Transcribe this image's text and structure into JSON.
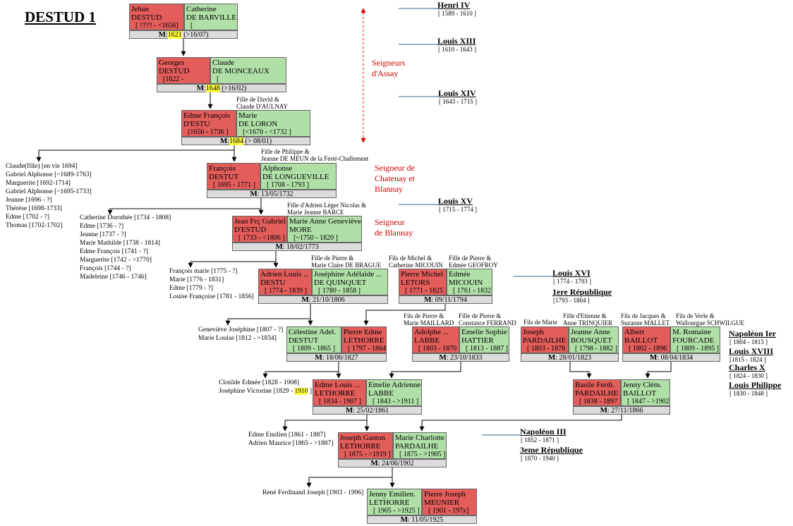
{
  "title": "DESTUD 1",
  "couples": [
    {
      "left": {
        "color": "#e35d5b",
        "lines": [
          "Jehan",
          "DESTUD"
        ],
        "dates": "[ ???? - <1656]"
      },
      "right": {
        "color": "#b0e0a8",
        "lines": [
          "Catherine",
          "DE BARVILLE"
        ],
        "dates": "["
      },
      "marriage": {
        "label": "M",
        "text": ":",
        "year": "1621",
        "after": "(>16/07)"
      }
    },
    {
      "left": {
        "color": "#e35d5b",
        "lines": [
          "Georges",
          "DESTUD"
        ],
        "dates": "[1622 -"
      },
      "right": {
        "color": "#b0e0a8",
        "lines": [
          "Claude",
          "DE MONCEAUX"
        ],
        "dates": "["
      },
      "marriage": {
        "label": "M",
        "text": ":",
        "year": "1648",
        "after": "(>16/02)"
      }
    },
    {
      "left": {
        "color": "#e35d5b",
        "lines": [
          "Edme François",
          "D'ESTU"
        ],
        "dates": "[1656 - 1736 ]"
      },
      "right": {
        "color": "#b0e0a8",
        "lines": [
          "Marie",
          "DE LORON"
        ],
        "dates": "[<1670 - <1732 ]"
      },
      "marriage": {
        "label": "M",
        "text": ":",
        "year": "1684",
        "after": "(> 08/01)"
      }
    },
    {
      "left": {
        "color": "#e35d5b",
        "lines": [
          "François",
          "DESTUT"
        ],
        "dates": "[ 1695 - 1771 ]"
      },
      "right": {
        "color": "#b0e0a8",
        "lines": [
          "Alphonse",
          "DE LONGUEVILLE"
        ],
        "dates": "[ 1708 - 1793 ]"
      },
      "marriage": {
        "label": "M",
        "text": ": 13/05/1732"
      }
    },
    {
      "left": {
        "color": "#e35d5b",
        "lines": [
          "Jean Frç Gabriel",
          "D'ESTUD"
        ],
        "dates": "[ 1733 - <1806 ]"
      },
      "right": {
        "color": "#b0e0a8",
        "lines": [
          "Marie Anne Geneviève",
          "MORE"
        ],
        "dates": "[~1750 - 1820 ]"
      },
      "marriage": {
        "label": "M",
        "text": ": 18/02/1773"
      }
    },
    {
      "left": {
        "color": "#e35d5b",
        "lines": [
          "Adrien Louis ...",
          "DESTU"
        ],
        "dates": "[ 1774 - 1839 ]"
      },
      "right": {
        "color": "#b0e0a8",
        "lines": [
          "Joséphine Adélaide ...",
          "DE QUINQUET"
        ],
        "dates": "[ 1780 - 1858 ]"
      },
      "marriage": {
        "label": "M",
        "text": ": 21/10/1806"
      }
    },
    {
      "left": {
        "color": "#e35d5b",
        "lines": [
          "Pierre Michel",
          "LETORS"
        ],
        "dates": "[ 1771 - 1825 ]"
      },
      "right": {
        "color": "#b0e0a8",
        "lines": [
          "Edmée",
          "MICOUIN"
        ],
        "dates": "[ 1761 - 1832 ]"
      },
      "marriage": {
        "label": "M",
        "text": ": 09/11/1794"
      }
    },
    {
      "left": {
        "color": "#b0e0a8",
        "lines": [
          "Célestine Adel.",
          "DESTUT"
        ],
        "dates": "[ 1809 - 1865 ]"
      },
      "right": {
        "color": "#e35d5b",
        "lines": [
          "Pierre Edme",
          "LETHORRE"
        ],
        "dates": "[ 1797 - 1864 ]"
      },
      "marriage": {
        "label": "M",
        "text": ": 18/06/1827"
      }
    },
    {
      "left": {
        "color": "#e35d5b",
        "lines": [
          "Adolphe ...",
          "LABBE"
        ],
        "dates": "[ 1803 - 1870 ]"
      },
      "right": {
        "color": "#b0e0a8",
        "lines": [
          "Emelie Sophie",
          "HATTIER"
        ],
        "dates": "[ 1813 - 1887 ]"
      },
      "marriage": {
        "label": "M",
        "text": ": 23/10/1833"
      }
    },
    {
      "left": {
        "color": "#e35d5b",
        "lines": [
          "Joseph",
          "PARDAILHE"
        ],
        "dates": "[ 1803 - 1878 ]"
      },
      "right": {
        "color": "#b0e0a8",
        "lines": [
          "Jeanne Anne",
          "BOUSQUET"
        ],
        "dates": "[ 1798 - 1882 ]"
      },
      "marriage": {
        "label": "M",
        "text": ": 28/01/1823"
      }
    },
    {
      "left": {
        "color": "#e35d5b",
        "lines": [
          "Albert",
          "BAILLOT"
        ],
        "dates": "[ 1802 - 1896 ]"
      },
      "right": {
        "color": "#b0e0a8",
        "lines": [
          "M. Romaine",
          "FOURCADE"
        ],
        "dates": "[ 1809 - 1895 ]"
      },
      "marriage": {
        "label": "M",
        "text": ": 08/04/1834"
      }
    },
    {
      "left": {
        "color": "#e35d5b",
        "lines": [
          "Edme Louis ...",
          "LETHORRE"
        ],
        "dates": "[ 1834 - 1907 ]"
      },
      "right": {
        "color": "#b0e0a8",
        "lines": [
          "Emelie Adrienne",
          "LABBE"
        ],
        "dates": "[ 1843 - >1911 ]"
      },
      "marriage": {
        "label": "M",
        "text": ": 25/02/1861"
      }
    },
    {
      "left": {
        "color": "#e35d5b",
        "lines": [
          "Basile Ferdi.",
          "PARDAILHE"
        ],
        "dates": "[ 1838 - 1897 ]"
      },
      "right": {
        "color": "#b0e0a8",
        "lines": [
          "Jenny Clém.",
          "BAILLOT"
        ],
        "dates": "[ 1847 - >1902 ]"
      },
      "marriage": {
        "label": "M",
        "text": ": 27/11/1866"
      }
    },
    {
      "left": {
        "color": "#e35d5b",
        "lines": [
          "Joseph Gaston",
          "LETHORRE"
        ],
        "dates": "[ 1875 - >1919 ]"
      },
      "right": {
        "color": "#b0e0a8",
        "lines": [
          "Marie Charlotte",
          "PARDAILHE"
        ],
        "dates": "[ 1875 - >1905 ]"
      },
      "marriage": {
        "label": "M",
        "text": ": 24/06/1902"
      }
    },
    {
      "left": {
        "color": "#b0e0a8",
        "lines": [
          "Jenny Emilien.",
          "LETHORRE"
        ],
        "dates": "[ 1905 - >1925 ]"
      },
      "right": {
        "color": "#e35d5b",
        "lines": [
          "Pierre Joseph",
          "MEUNIER"
        ],
        "dates": "[ 1901 - 197x]"
      },
      "marriage": {
        "label": "M",
        "text": ": 11/05/1925"
      }
    }
  ],
  "notes": [
    [
      "Fille de David &",
      "Claude D'AULNAY"
    ],
    [
      "Fille de Philippe &",
      "Jeanne DE MEUN de la Ferté-Challement"
    ],
    [
      "Fille d'Adrien Léger Nicolas &",
      "Marie Jeanne BARCE"
    ],
    [
      "Fille de Pierre &",
      "Marie Claire DE BRAGUE"
    ],
    [
      "Fils de Michel &",
      "Catherine MICOUIN"
    ],
    [
      "Fille de Pierre &",
      "Edmée GEOFROY"
    ],
    [
      "Fils de Pierre &",
      "Marie MAILLARD"
    ],
    [
      "Fille de Pierre &",
      "Constance FERRAND"
    ],
    [
      "Fils de Marie"
    ],
    [
      "Fille d'Etienne &",
      "Anne TRINQUIER"
    ],
    [
      "Fils de Jacques &",
      "Suzanne MALLET"
    ],
    [
      "Fils de Verle &",
      "Wallourgue SCHWILGUE"
    ]
  ],
  "children": [
    [
      "Claude(fille) [en vie 1694]",
      "Gabriel Alphonse [~1689-1763]",
      "Marguerite [1692-1714]",
      "Gabriel Alphonse [~1695-1733]",
      "Jeanne [1696 - ?]",
      "Thérèse [1698-1733]",
      "Edme [1702 - ?]",
      "Thomas [1702-1702]"
    ],
    [
      "Catherine Dorothée [1734 - 1808]",
      "Edme [1736 - ?]",
      "Jeanne [1737 - ?]",
      "Marie Mathilde [1738 - 1814]",
      "Edme François [1741 - ?]",
      "Marguerite [1742 - >1770]",
      "François [1744 - ?]",
      "Madeleine [1746 - 1746]"
    ],
    [
      "François marie [1775 - ?]",
      "Marie [1776 - 1831]",
      "Edme [1779 - ?]",
      "Louise Françoise [1781 - 1856]"
    ],
    [
      "Geneviève Joséphine [1807 - ?]",
      "Marie Louise [1812 - >1834]"
    ],
    [
      "Clotilde Edmée [1828 - 1908]",
      {
        "text": "Joséphine Victorine [1829 -",
        "year": "1910",
        "after": "]"
      }
    ],
    [
      "Edme Emilien [1861 - 1887]",
      "Adrien Maurice [1865 - >1887]"
    ],
    [
      "René Ferdinand Joseph [1903 - 1996]"
    ]
  ],
  "rulers": [
    {
      "name": "Henri IV",
      "dates": "[ 1589 - 1610 ]"
    },
    {
      "name": "Louis XIII",
      "dates": "[ 1610 - 1643 ]"
    },
    {
      "name": "Louis XIV",
      "dates": "[ 1643 - 1715 ]"
    },
    {
      "name": "Louis XV",
      "dates": "[ 1715 - 1774 ]"
    },
    {
      "name": "Louis XVI",
      "dates": "[ 1774 - 1793 ]"
    },
    {
      "name": "1ere République",
      "dates": "[1793 - 1804 ]"
    },
    {
      "name": "Napoléon Ier",
      "dates": "[ 1804 - 1815 ]"
    },
    {
      "name": "Louis XVIII",
      "dates": "[1815 - 1824 ]"
    },
    {
      "name": "Charles X",
      "dates": "[ 1824 - 1830 ]"
    },
    {
      "name": "Louis Philippe",
      "dates": "[ 1830 - 1848 ]"
    },
    {
      "name": "Napoléon III",
      "dates": "[ 1852 - 1871 ]"
    },
    {
      "name": "3eme République",
      "dates": "[ 1870 - 1940 ]"
    }
  ],
  "seigneuries": [
    [
      "Seigneurs",
      "d'Assay"
    ],
    [
      "Seigneur de",
      "Chatenay et",
      "Blannay"
    ],
    [
      "Seigneur",
      "de Blannay"
    ]
  ]
}
